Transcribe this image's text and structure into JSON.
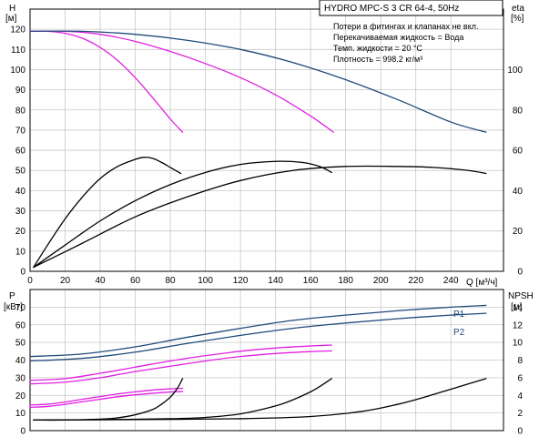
{
  "chart_data": [
    {
      "id": "top",
      "type": "line",
      "title": "HYDRO MPC-S 3 CR 64-4, 50Hz",
      "notes": [
        "Потери в фитингах и клапанах не вкл.",
        "Перекачиваемая жидкость = Вода",
        "Темп. жидкости = 20 °C",
        "Плотность = 998.2 кг/м³"
      ],
      "xlabel": "Q [м³/ч]",
      "xlim": [
        0,
        270
      ],
      "xticks": [
        0,
        20,
        40,
        60,
        80,
        100,
        120,
        140,
        160,
        180,
        200,
        220,
        240
      ],
      "ylabel_left": [
        "H",
        "[м]"
      ],
      "ylim_left": [
        0,
        130
      ],
      "yticks_left": [
        0,
        10,
        20,
        30,
        40,
        50,
        60,
        70,
        80,
        90,
        100,
        110,
        120
      ],
      "ylabel_right": [
        "eta",
        "[%]"
      ],
      "ylim_right": [
        0,
        130
      ],
      "yticks_right": [
        0,
        20,
        40,
        60,
        80,
        100
      ],
      "grid": true,
      "series": [
        {
          "axis": "left",
          "color": "#e020e0",
          "x": [
            0,
            10,
            20,
            30,
            40,
            50,
            60,
            70,
            80,
            87
          ],
          "y": [
            119,
            119,
            118,
            115.5,
            111,
            104.5,
            96,
            86,
            75.5,
            69
          ]
        },
        {
          "axis": "left",
          "color": "#e020e0",
          "x": [
            0,
            20,
            40,
            60,
            80,
            100,
            120,
            140,
            160,
            173
          ],
          "y": [
            119,
            119,
            117.5,
            114,
            109,
            103,
            96,
            87.5,
            77,
            69
          ]
        },
        {
          "axis": "left",
          "color": "#1e4a7a",
          "x": [
            0,
            30,
            60,
            90,
            120,
            150,
            180,
            210,
            240,
            260
          ],
          "y": [
            119,
            119,
            117.5,
            114.5,
            110,
            103.5,
            95,
            85,
            74,
            69
          ]
        },
        {
          "axis": "right",
          "color": "#000000",
          "x": [
            2,
            10,
            20,
            30,
            40,
            50,
            60,
            65,
            70,
            75,
            80,
            86
          ],
          "y": [
            2,
            13,
            26,
            37,
            46,
            52,
            55.5,
            56.5,
            56,
            54,
            51.5,
            48.5
          ]
        },
        {
          "axis": "right",
          "color": "#000000",
          "x": [
            2,
            20,
            40,
            60,
            80,
            100,
            120,
            140,
            155,
            165,
            172
          ],
          "y": [
            2,
            13,
            25,
            35,
            43,
            49,
            53,
            54.5,
            54,
            52,
            49
          ]
        },
        {
          "axis": "right",
          "color": "#000000",
          "x": [
            2,
            30,
            60,
            90,
            120,
            150,
            180,
            210,
            230,
            250,
            260
          ],
          "y": [
            2,
            14,
            27,
            37,
            45,
            50,
            52,
            52,
            51.5,
            50,
            48.5
          ]
        }
      ]
    },
    {
      "id": "bottom",
      "type": "line",
      "xlim": [
        0,
        270
      ],
      "ylabel_left": [
        "P",
        "[кВт]"
      ],
      "ylim_left": [
        0,
        80
      ],
      "yticks_left": [
        0,
        10,
        20,
        30,
        40,
        50,
        60,
        70
      ],
      "ylabel_right": [
        "NPSH",
        "[м]"
      ],
      "ylim_right": [
        0,
        16
      ],
      "yticks_right": [
        0,
        2,
        4,
        6,
        8,
        10,
        12,
        14
      ],
      "grid": true,
      "series_labels": [
        "P1",
        "P2"
      ],
      "series": [
        {
          "name": "P1",
          "axis": "left",
          "color": "#1e4a7a",
          "x": [
            0,
            30,
            60,
            90,
            120,
            150,
            180,
            210,
            240,
            260
          ],
          "y": [
            42,
            43.5,
            47.5,
            53,
            58,
            62.5,
            65.5,
            68,
            70,
            71
          ]
        },
        {
          "name": "P2",
          "axis": "left",
          "color": "#1e4a7a",
          "x": [
            0,
            30,
            60,
            90,
            120,
            150,
            180,
            210,
            240,
            260
          ],
          "y": [
            39.5,
            41,
            44.5,
            49.5,
            54,
            58,
            61,
            63.5,
            65.5,
            66.5
          ]
        },
        {
          "axis": "left",
          "color": "#e020e0",
          "x": [
            0,
            20,
            40,
            60,
            80,
            100,
            120,
            140,
            160,
            172
          ],
          "y": [
            28.5,
            29.5,
            32.5,
            36,
            39.5,
            42.5,
            45,
            46.8,
            48,
            48.5
          ]
        },
        {
          "axis": "left",
          "color": "#e020e0",
          "x": [
            0,
            20,
            40,
            60,
            80,
            100,
            120,
            140,
            160,
            172
          ],
          "y": [
            26.5,
            27.5,
            30,
            33.5,
            36.5,
            39.5,
            42,
            43.7,
            44.8,
            45.2
          ]
        },
        {
          "axis": "left",
          "color": "#e020e0",
          "x": [
            0,
            10,
            20,
            30,
            40,
            50,
            60,
            70,
            80,
            87
          ],
          "y": [
            14.5,
            15,
            16.2,
            17.8,
            19.3,
            20.8,
            22,
            23,
            23.7,
            24
          ]
        },
        {
          "axis": "left",
          "color": "#e020e0",
          "x": [
            0,
            10,
            20,
            30,
            40,
            50,
            60,
            70,
            80,
            87
          ],
          "y": [
            13.2,
            13.7,
            14.9,
            16.4,
            17.8,
            19.2,
            20.3,
            21.2,
            21.9,
            22.2
          ]
        },
        {
          "axis": "right",
          "color": "#000000",
          "x": [
            2,
            20,
            40,
            50,
            60,
            70,
            75,
            80,
            84,
            87
          ],
          "y": [
            1.2,
            1.2,
            1.3,
            1.45,
            1.8,
            2.4,
            3.0,
            3.8,
            4.8,
            5.9
          ]
        },
        {
          "axis": "right",
          "color": "#000000",
          "x": [
            2,
            40,
            80,
            100,
            120,
            140,
            150,
            160,
            166,
            172
          ],
          "y": [
            1.2,
            1.25,
            1.35,
            1.5,
            1.9,
            2.8,
            3.5,
            4.4,
            5.1,
            5.9
          ]
        },
        {
          "axis": "right",
          "color": "#000000",
          "x": [
            2,
            60,
            120,
            160,
            190,
            210,
            225,
            240,
            250,
            260
          ],
          "y": [
            1.2,
            1.25,
            1.35,
            1.6,
            2.2,
            3.0,
            3.8,
            4.7,
            5.3,
            5.9
          ]
        }
      ]
    }
  ]
}
